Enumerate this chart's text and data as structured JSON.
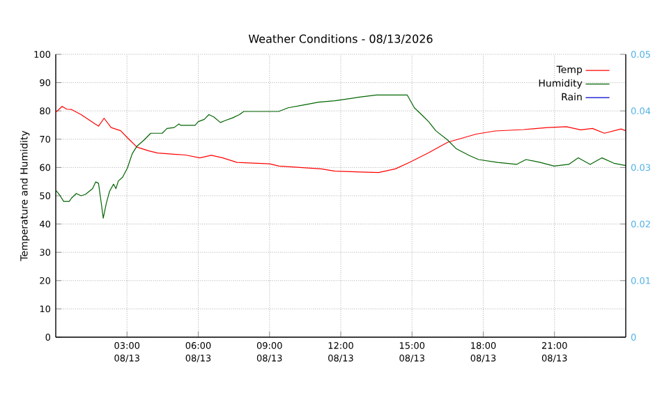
{
  "chart_data": {
    "type": "line",
    "title": "Weather Conditions - 08/13/2026",
    "ylabel": "Temperature and Humidity",
    "xlim": [
      "2026-08-13T00:00",
      "2026-08-14T00:00"
    ],
    "xticks": [
      {
        "value": "2026-08-13T03:00",
        "label": "03:00 08/13"
      },
      {
        "value": "2026-08-13T06:00",
        "label": "06:00 08/13"
      },
      {
        "value": "2026-08-13T09:00",
        "label": "09:00 08/13"
      },
      {
        "value": "2026-08-13T12:00",
        "label": "12:00 08/13"
      },
      {
        "value": "2026-08-13T15:00",
        "label": "15:00 08/13"
      },
      {
        "value": "2026-08-13T18:00",
        "label": "18:00 08/13"
      },
      {
        "value": "2026-08-13T21:00",
        "label": "21:00 08/13"
      }
    ],
    "ylim": [
      0,
      100
    ],
    "yticks": [
      0,
      10,
      20,
      30,
      40,
      50,
      60,
      70,
      80,
      90,
      100
    ],
    "y2lim": [
      0,
      0.05
    ],
    "y2ticks": [
      0,
      0.01,
      0.02,
      0.03,
      0.04,
      0.05
    ],
    "grid": true,
    "legend": "top right",
    "series": [
      {
        "name": "Temp",
        "color": "#ff0000",
        "x": [
          "2026-08-13T00:00",
          "2026-08-13T00:16",
          "2026-08-13T00:28",
          "2026-08-13T00:40",
          "2026-08-13T01:04",
          "2026-08-13T01:39",
          "2026-08-13T01:48",
          "2026-08-13T02:02",
          "2026-08-13T02:20",
          "2026-08-13T02:44",
          "2026-08-13T03:01",
          "2026-08-13T03:25",
          "2026-08-13T03:54",
          "2026-08-13T04:17",
          "2026-08-13T05:28",
          "2026-08-13T06:04",
          "2026-08-13T06:33",
          "2026-08-13T07:02",
          "2026-08-13T07:38",
          "2026-08-13T09:00",
          "2026-08-13T09:24",
          "2026-08-13T11:10",
          "2026-08-13T11:45",
          "2026-08-13T13:36",
          "2026-08-13T14:18",
          "2026-08-13T14:54",
          "2026-08-13T15:42",
          "2026-08-13T16:30",
          "2026-08-13T17:42",
          "2026-08-13T18:30",
          "2026-08-13T19:42",
          "2026-08-13T20:42",
          "2026-08-13T21:30",
          "2026-08-13T22:06",
          "2026-08-13T22:36",
          "2026-08-13T23:06",
          "2026-08-13T23:48",
          "2026-08-14T00:00"
        ],
        "values": [
          79.5,
          81.6,
          80.6,
          80.5,
          78.7,
          75.4,
          74.6,
          77.4,
          74.1,
          73,
          70.5,
          67.2,
          65.9,
          65.1,
          64.4,
          63.4,
          64.3,
          63.4,
          61.8,
          61.3,
          60.5,
          59.5,
          58.7,
          58.2,
          59.5,
          61.8,
          65.2,
          68.9,
          71.8,
          72.9,
          73.4,
          74.1,
          74.4,
          73.3,
          73.8,
          72.1,
          73.6,
          73
        ]
      },
      {
        "name": "Humidity",
        "color": "#006400",
        "x": [
          "2026-08-13T00:00",
          "2026-08-13T00:11",
          "2026-08-13T00:20",
          "2026-08-13T00:34",
          "2026-08-13T00:40",
          "2026-08-13T00:52",
          "2026-08-13T01:04",
          "2026-08-13T01:15",
          "2026-08-13T01:33",
          "2026-08-13T01:41",
          "2026-08-13T01:48",
          "2026-08-13T01:54",
          "2026-08-13T02:00",
          "2026-08-13T02:08",
          "2026-08-13T02:16",
          "2026-08-13T02:26",
          "2026-08-13T02:32",
          "2026-08-13T02:38",
          "2026-08-13T02:49",
          "2026-08-13T03:01",
          "2026-08-13T03:13",
          "2026-08-13T03:25",
          "2026-08-13T03:43",
          "2026-08-13T04:00",
          "2026-08-13T04:29",
          "2026-08-13T04:41",
          "2026-08-13T04:59",
          "2026-08-13T05:11",
          "2026-08-13T05:16",
          "2026-08-13T05:52",
          "2026-08-13T06:00",
          "2026-08-13T06:15",
          "2026-08-13T06:27",
          "2026-08-13T06:39",
          "2026-08-13T06:56",
          "2026-08-13T07:08",
          "2026-08-13T07:26",
          "2026-08-13T07:44",
          "2026-08-13T07:55",
          "2026-08-13T09:23",
          "2026-08-13T09:47",
          "2026-08-13T10:22",
          "2026-08-13T11:04",
          "2026-08-13T11:45",
          "2026-08-13T12:44",
          "2026-08-13T13:30",
          "2026-08-13T14:48",
          "2026-08-13T15:06",
          "2026-08-13T15:24",
          "2026-08-13T15:42",
          "2026-08-13T16:00",
          "2026-08-13T16:30",
          "2026-08-13T16:51",
          "2026-08-13T17:24",
          "2026-08-13T17:48",
          "2026-08-13T18:36",
          "2026-08-13T19:24",
          "2026-08-13T19:48",
          "2026-08-13T20:24",
          "2026-08-13T20:59",
          "2026-08-13T21:36",
          "2026-08-13T22:00",
          "2026-08-13T22:30",
          "2026-08-13T23:00",
          "2026-08-13T23:30",
          "2026-08-14T00:00"
        ],
        "values": [
          52,
          50,
          48,
          48,
          49.2,
          50.8,
          50,
          50.5,
          52.5,
          54.9,
          54.4,
          48.4,
          42.1,
          47.5,
          51.6,
          54.1,
          52.5,
          55.2,
          56.6,
          59.8,
          64.8,
          67.5,
          69.7,
          72.1,
          72.1,
          73.8,
          74.1,
          75.4,
          74.9,
          74.9,
          76.2,
          77,
          78.7,
          77.9,
          75.9,
          76.6,
          77.5,
          78.7,
          79.8,
          79.8,
          81.1,
          82,
          83.1,
          83.6,
          84.8,
          85.6,
          85.6,
          81.1,
          78.7,
          76.2,
          73,
          69.7,
          66.7,
          64.3,
          62.8,
          61.8,
          61.1,
          62.8,
          61.8,
          60.5,
          61.1,
          63.4,
          61.1,
          63.4,
          61.5,
          60.7
        ]
      },
      {
        "name": "Rain",
        "color": "#0000cc"
      }
    ]
  }
}
